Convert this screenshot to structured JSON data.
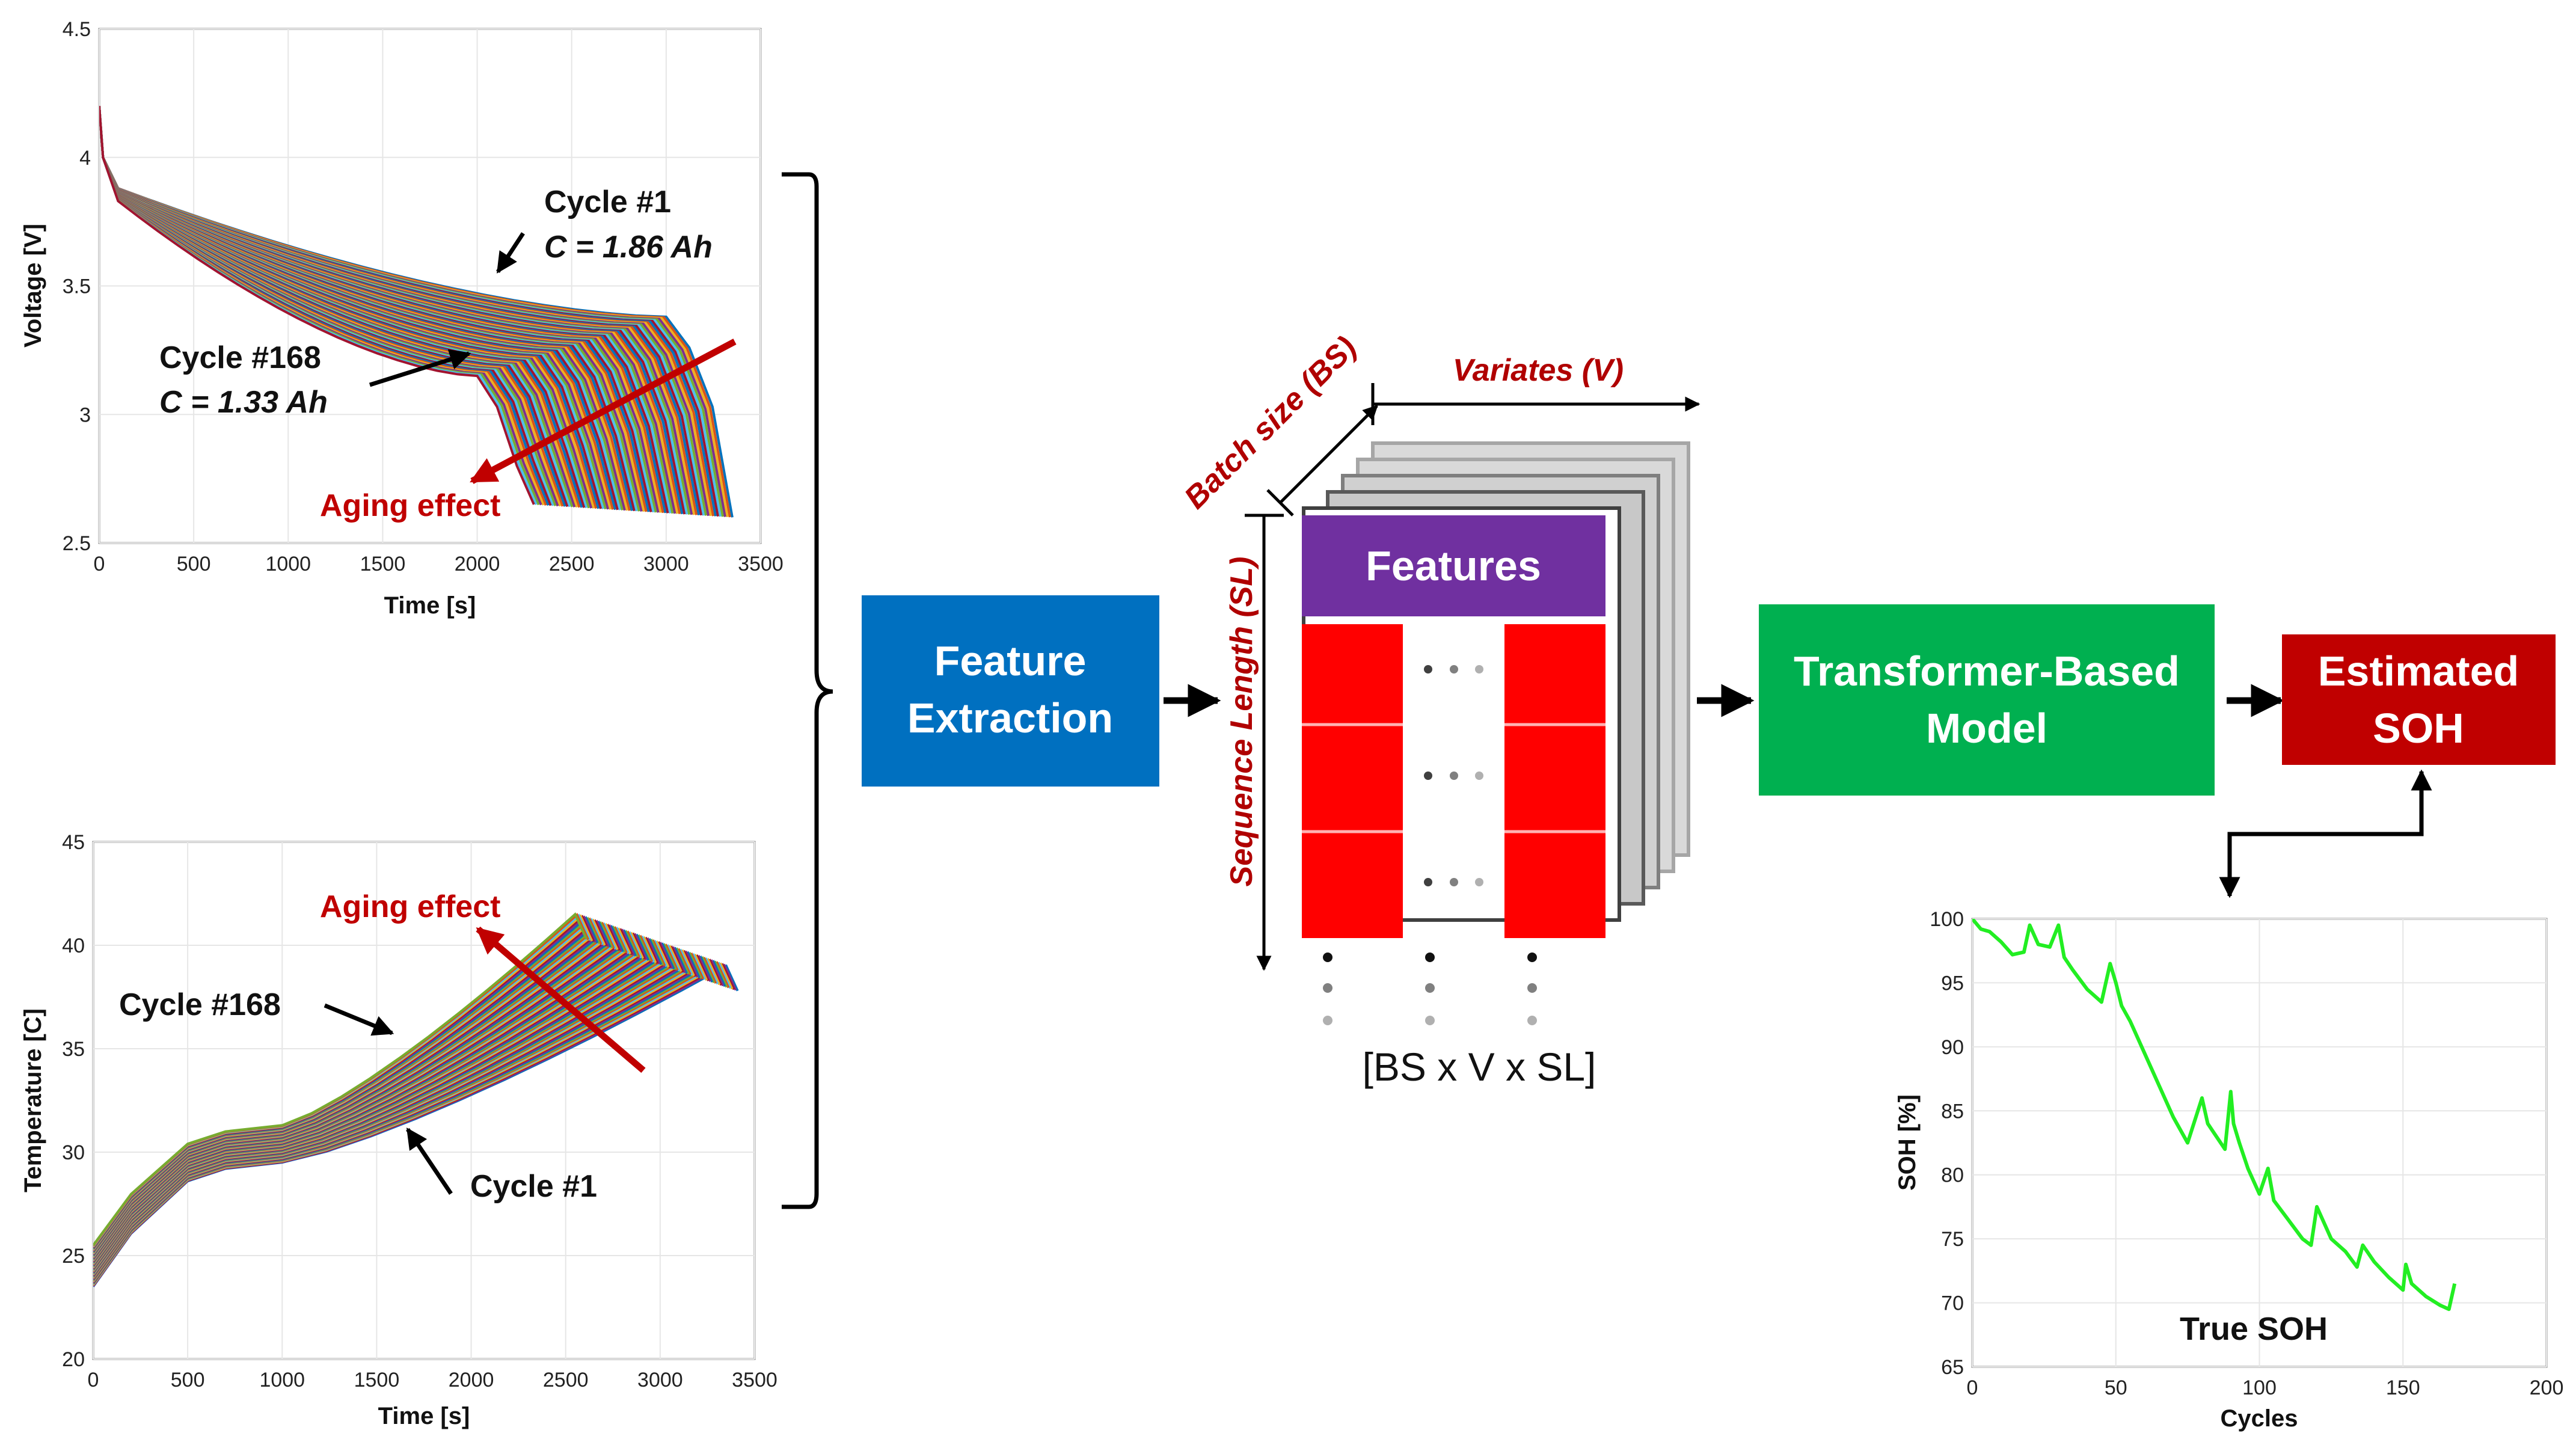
{
  "colors": {
    "feature_box": "#0070c0",
    "transformer_box": "#00b050",
    "soh_box": "#c00000",
    "features_header": "#7030a0",
    "red_block": "#ff0000",
    "annotation_red": "#c00000",
    "soh_line": "#22ee22"
  },
  "boxes": {
    "feature_extraction": [
      "Feature",
      "Extraction"
    ],
    "transformer": [
      "Transformer-Based",
      "Model"
    ],
    "estimated_soh": [
      "Estimated",
      "SOH"
    ]
  },
  "tensor": {
    "header": "Features",
    "batch_label": "Batch size (BS)",
    "variates_label": "Variates (V)",
    "sequence_label": "Sequence Length (SL)",
    "shape": "[BS x V x SL]"
  },
  "chart_data": [
    {
      "id": "voltage",
      "type": "line",
      "xlabel": "Time [s]",
      "ylabel": "Voltage [V]",
      "xlim": [
        0,
        3500
      ],
      "ylim": [
        2.5,
        4.5
      ],
      "xticks": [
        "0",
        "500",
        "1000",
        "1500",
        "2000",
        "2500",
        "3000",
        "3500"
      ],
      "yticks": [
        "2.5",
        "3",
        "3.5",
        "4",
        "4.5"
      ],
      "series_count": 168,
      "first_cycle": {
        "start_v": 4.2,
        "knee_t": 3000,
        "knee_v": 3.38,
        "end_t": 3350,
        "end_v": 2.6
      },
      "last_cycle": {
        "start_v": 4.2,
        "knee_t": 2000,
        "knee_v": 3.15,
        "end_t": 2300,
        "end_v": 2.65
      },
      "annotations": {
        "cycle1": "Cycle #1",
        "cycle1_capacity": "C = 1.86 Ah",
        "cycle168": "Cycle #168",
        "cycle168_capacity": "C = 1.33 Ah",
        "aging": "Aging effect"
      }
    },
    {
      "id": "temperature",
      "type": "line",
      "xlabel": "Time [s]",
      "ylabel": "Temperature [C]",
      "xlim": [
        0,
        3500
      ],
      "ylim": [
        20,
        45
      ],
      "xticks": [
        "0",
        "500",
        "1000",
        "1500",
        "2000",
        "2500",
        "3000",
        "3500"
      ],
      "yticks": [
        "20",
        "25",
        "30",
        "35",
        "40",
        "45"
      ],
      "series_count": 168,
      "first_cycle": {
        "start_c": 23.5,
        "plateau_t": 700,
        "plateau_c": 29.2,
        "end_t": 3350,
        "end_c": 39
      },
      "last_cycle": {
        "start_c": 25.5,
        "plateau_t": 700,
        "plateau_c": 31,
        "end_t": 2550,
        "end_c": 41.5
      },
      "annotations": {
        "cycle168": "Cycle #168",
        "cycle1": "Cycle #1",
        "aging": "Aging effect"
      }
    },
    {
      "id": "soh",
      "type": "line",
      "xlabel": "Cycles",
      "ylabel": "SOH [%]",
      "xlim": [
        0,
        200
      ],
      "ylim": [
        65,
        100
      ],
      "xticks": [
        "0",
        "50",
        "100",
        "150",
        "200"
      ],
      "yticks": [
        "65",
        "70",
        "75",
        "80",
        "85",
        "90",
        "95",
        "100"
      ],
      "legend": "True SOH",
      "x": [
        0,
        3,
        6,
        10,
        14,
        18,
        20,
        23,
        27,
        30,
        32,
        35,
        40,
        45,
        48,
        50,
        52,
        55,
        60,
        65,
        70,
        75,
        80,
        82,
        85,
        88,
        90,
        91,
        93,
        96,
        100,
        103,
        105,
        110,
        115,
        118,
        120,
        125,
        130,
        134,
        136,
        140,
        145,
        150,
        151,
        153,
        158,
        163,
        166,
        168
      ],
      "values": [
        100,
        99.2,
        99,
        98.2,
        97.2,
        97.4,
        99.5,
        98,
        97.8,
        99.5,
        97,
        96,
        94.5,
        93.5,
        96.5,
        95,
        93.2,
        92,
        89.5,
        87,
        84.5,
        82.5,
        86,
        84,
        83,
        82,
        86.5,
        84,
        82.5,
        80.5,
        78.5,
        80.5,
        78,
        76.5,
        75,
        74.5,
        77.5,
        75,
        74,
        72.8,
        74.5,
        73.2,
        72,
        71,
        73,
        71.5,
        70.5,
        69.8,
        69.5,
        71.5
      ]
    }
  ]
}
